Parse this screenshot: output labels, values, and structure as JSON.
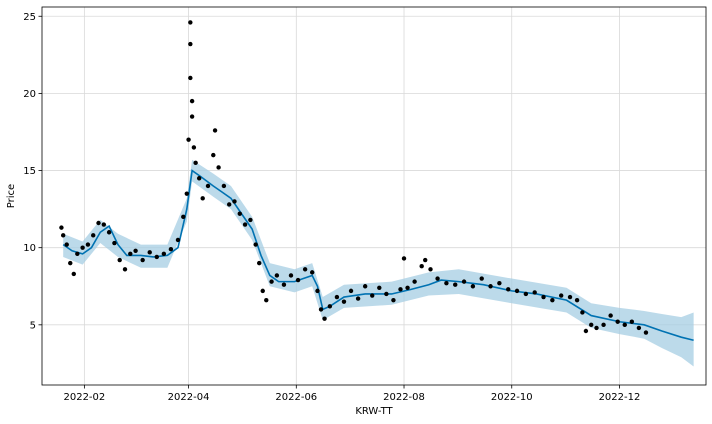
{
  "chart_data": {
    "type": "line",
    "title": "",
    "xlabel": "KRW-TT",
    "ylabel": "Price",
    "grid": true,
    "x_range": [
      "2022-01-08",
      "2023-01-19"
    ],
    "ylim": [
      1.1,
      25.6
    ],
    "x_ticks": [
      "2022-02",
      "2022-04",
      "2022-06",
      "2022-08",
      "2022-10",
      "2022-12"
    ],
    "y_ticks": [
      5,
      10,
      15,
      20,
      25
    ],
    "colors": {
      "forecast": "#0072B2",
      "interval": "#A6CEE3",
      "observed": "#000000",
      "grid": "#d9d9d9"
    },
    "series": [
      {
        "kind": "forecast",
        "points": [
          [
            "2022-01-20",
            10.2
          ],
          [
            "2022-01-25",
            9.8
          ],
          [
            "2022-01-31",
            9.6
          ],
          [
            "2022-02-05",
            10.0
          ],
          [
            "2022-02-10",
            11.0
          ],
          [
            "2022-02-15",
            11.4
          ],
          [
            "2022-02-20",
            10.2
          ],
          [
            "2022-02-25",
            9.5
          ],
          [
            "2022-03-05",
            9.5
          ],
          [
            "2022-03-12",
            9.4
          ],
          [
            "2022-03-20",
            9.5
          ],
          [
            "2022-03-26",
            10.0
          ],
          [
            "2022-03-31",
            12.5
          ],
          [
            "2022-04-03",
            15.0
          ],
          [
            "2022-04-08",
            14.6
          ],
          [
            "2022-04-15",
            14.0
          ],
          [
            "2022-04-20",
            13.6
          ],
          [
            "2022-04-25",
            13.2
          ],
          [
            "2022-05-01",
            12.2
          ],
          [
            "2022-05-07",
            11.2
          ],
          [
            "2022-05-12",
            9.5
          ],
          [
            "2022-05-17",
            8.2
          ],
          [
            "2022-05-22",
            7.8
          ],
          [
            "2022-05-31",
            7.8
          ],
          [
            "2022-06-05",
            8.0
          ],
          [
            "2022-06-10",
            8.2
          ],
          [
            "2022-06-13",
            7.5
          ],
          [
            "2022-06-16",
            6.0
          ],
          [
            "2022-06-20",
            6.2
          ],
          [
            "2022-06-28",
            6.8
          ],
          [
            "2022-07-10",
            7.0
          ],
          [
            "2022-07-25",
            7.0
          ],
          [
            "2022-08-05",
            7.3
          ],
          [
            "2022-08-15",
            7.6
          ],
          [
            "2022-08-22",
            7.9
          ],
          [
            "2022-09-01",
            7.8
          ],
          [
            "2022-09-15",
            7.6
          ],
          [
            "2022-10-01",
            7.2
          ],
          [
            "2022-10-15",
            7.0
          ],
          [
            "2022-11-01",
            6.6
          ],
          [
            "2022-11-15",
            5.6
          ],
          [
            "2022-12-01",
            5.2
          ],
          [
            "2022-12-15",
            5.0
          ],
          [
            "2022-12-25",
            4.6
          ],
          [
            "2023-01-05",
            4.2
          ],
          [
            "2023-01-12",
            4.0
          ]
        ]
      },
      {
        "kind": "uncertainty_band",
        "points": [
          [
            "2022-01-20",
            9.4,
            10.9
          ],
          [
            "2022-01-31",
            8.9,
            10.4
          ],
          [
            "2022-02-10",
            10.3,
            11.8
          ],
          [
            "2022-02-20",
            9.4,
            10.9
          ],
          [
            "2022-03-05",
            8.7,
            10.2
          ],
          [
            "2022-03-20",
            8.7,
            10.2
          ],
          [
            "2022-03-31",
            11.7,
            13.2
          ],
          [
            "2022-04-03",
            14.3,
            15.7
          ],
          [
            "2022-04-15",
            13.3,
            14.8
          ],
          [
            "2022-04-25",
            12.5,
            14.0
          ],
          [
            "2022-05-07",
            10.5,
            12.0
          ],
          [
            "2022-05-17",
            7.5,
            9.0
          ],
          [
            "2022-05-31",
            7.1,
            8.6
          ],
          [
            "2022-06-10",
            7.5,
            9.0
          ],
          [
            "2022-06-16",
            5.3,
            6.8
          ],
          [
            "2022-06-28",
            6.1,
            7.6
          ],
          [
            "2022-07-25",
            6.3,
            7.8
          ],
          [
            "2022-08-15",
            6.9,
            8.4
          ],
          [
            "2022-09-01",
            7.0,
            8.6
          ],
          [
            "2022-10-01",
            6.4,
            8.0
          ],
          [
            "2022-11-01",
            5.8,
            7.4
          ],
          [
            "2022-11-15",
            4.8,
            6.4
          ],
          [
            "2022-12-01",
            4.4,
            6.1
          ],
          [
            "2022-12-15",
            4.1,
            5.9
          ],
          [
            "2022-12-25",
            3.5,
            5.7
          ],
          [
            "2023-01-05",
            2.9,
            5.5
          ],
          [
            "2023-01-12",
            2.3,
            5.8
          ]
        ]
      },
      {
        "kind": "observed",
        "points": [
          [
            "2022-01-19",
            11.3
          ],
          [
            "2022-01-20",
            10.8
          ],
          [
            "2022-01-22",
            10.2
          ],
          [
            "2022-01-24",
            9.0
          ],
          [
            "2022-01-26",
            8.3
          ],
          [
            "2022-01-28",
            9.6
          ],
          [
            "2022-01-31",
            10.0
          ],
          [
            "2022-02-03",
            10.2
          ],
          [
            "2022-02-06",
            10.8
          ],
          [
            "2022-02-09",
            11.6
          ],
          [
            "2022-02-12",
            11.5
          ],
          [
            "2022-02-15",
            11.0
          ],
          [
            "2022-02-18",
            10.3
          ],
          [
            "2022-02-21",
            9.2
          ],
          [
            "2022-02-24",
            8.6
          ],
          [
            "2022-02-27",
            9.6
          ],
          [
            "2022-03-02",
            9.8
          ],
          [
            "2022-03-06",
            9.2
          ],
          [
            "2022-03-10",
            9.7
          ],
          [
            "2022-03-14",
            9.4
          ],
          [
            "2022-03-18",
            9.6
          ],
          [
            "2022-03-22",
            9.9
          ],
          [
            "2022-03-26",
            10.5
          ],
          [
            "2022-03-29",
            12.0
          ],
          [
            "2022-03-31",
            13.5
          ],
          [
            "2022-04-01",
            17.0
          ],
          [
            "2022-04-02",
            24.6
          ],
          [
            "2022-04-02",
            23.2
          ],
          [
            "2022-04-02",
            21.0
          ],
          [
            "2022-04-03",
            19.5
          ],
          [
            "2022-04-03",
            18.5
          ],
          [
            "2022-04-04",
            16.5
          ],
          [
            "2022-04-05",
            15.5
          ],
          [
            "2022-04-07",
            14.5
          ],
          [
            "2022-04-09",
            13.2
          ],
          [
            "2022-04-12",
            14.0
          ],
          [
            "2022-04-15",
            16.0
          ],
          [
            "2022-04-16",
            17.6
          ],
          [
            "2022-04-18",
            15.2
          ],
          [
            "2022-04-21",
            14.0
          ],
          [
            "2022-04-24",
            12.8
          ],
          [
            "2022-04-27",
            13.0
          ],
          [
            "2022-04-30",
            12.2
          ],
          [
            "2022-05-03",
            11.5
          ],
          [
            "2022-05-06",
            11.8
          ],
          [
            "2022-05-09",
            10.2
          ],
          [
            "2022-05-11",
            9.0
          ],
          [
            "2022-05-13",
            7.2
          ],
          [
            "2022-05-15",
            6.6
          ],
          [
            "2022-05-18",
            7.8
          ],
          [
            "2022-05-21",
            8.2
          ],
          [
            "2022-05-25",
            7.6
          ],
          [
            "2022-05-29",
            8.2
          ],
          [
            "2022-06-02",
            7.9
          ],
          [
            "2022-06-06",
            8.6
          ],
          [
            "2022-06-10",
            8.4
          ],
          [
            "2022-06-13",
            7.2
          ],
          [
            "2022-06-15",
            6.0
          ],
          [
            "2022-06-17",
            5.4
          ],
          [
            "2022-06-20",
            6.2
          ],
          [
            "2022-06-24",
            6.8
          ],
          [
            "2022-06-28",
            6.5
          ],
          [
            "2022-07-02",
            7.2
          ],
          [
            "2022-07-06",
            6.7
          ],
          [
            "2022-07-10",
            7.5
          ],
          [
            "2022-07-14",
            6.9
          ],
          [
            "2022-07-18",
            7.4
          ],
          [
            "2022-07-22",
            7.0
          ],
          [
            "2022-07-26",
            6.6
          ],
          [
            "2022-07-30",
            7.3
          ],
          [
            "2022-08-01",
            9.3
          ],
          [
            "2022-08-03",
            7.4
          ],
          [
            "2022-08-07",
            7.8
          ],
          [
            "2022-08-11",
            8.8
          ],
          [
            "2022-08-13",
            9.2
          ],
          [
            "2022-08-16",
            8.6
          ],
          [
            "2022-08-20",
            8.0
          ],
          [
            "2022-08-25",
            7.7
          ],
          [
            "2022-08-30",
            7.6
          ],
          [
            "2022-09-04",
            7.8
          ],
          [
            "2022-09-09",
            7.5
          ],
          [
            "2022-09-14",
            8.0
          ],
          [
            "2022-09-19",
            7.5
          ],
          [
            "2022-09-24",
            7.7
          ],
          [
            "2022-09-29",
            7.3
          ],
          [
            "2022-10-04",
            7.2
          ],
          [
            "2022-10-09",
            7.0
          ],
          [
            "2022-10-14",
            7.1
          ],
          [
            "2022-10-19",
            6.8
          ],
          [
            "2022-10-24",
            6.6
          ],
          [
            "2022-10-29",
            6.9
          ],
          [
            "2022-11-03",
            6.8
          ],
          [
            "2022-11-07",
            6.6
          ],
          [
            "2022-11-10",
            5.8
          ],
          [
            "2022-11-12",
            4.6
          ],
          [
            "2022-11-15",
            5.0
          ],
          [
            "2022-11-18",
            4.8
          ],
          [
            "2022-11-22",
            5.0
          ],
          [
            "2022-11-26",
            5.6
          ],
          [
            "2022-11-30",
            5.2
          ],
          [
            "2022-12-04",
            5.0
          ],
          [
            "2022-12-08",
            5.2
          ],
          [
            "2022-12-12",
            4.8
          ],
          [
            "2022-12-16",
            4.5
          ]
        ]
      }
    ]
  }
}
